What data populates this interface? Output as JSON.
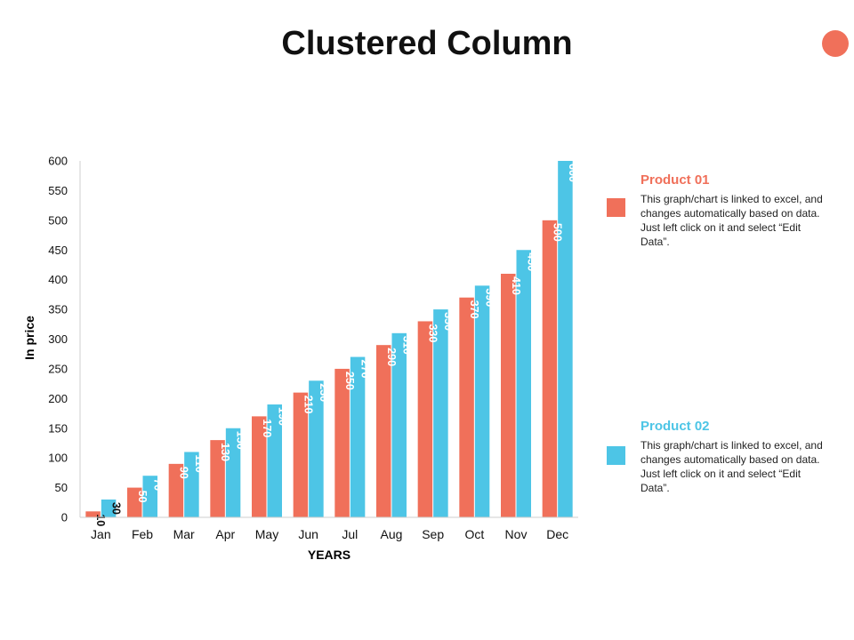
{
  "title": "Clustered Column",
  "colors": {
    "product_01": "#F0705A",
    "product_02": "#4DC5E6",
    "accent_dot": "#F0705A",
    "axis": "#cfcfcf"
  },
  "chart_data": {
    "type": "bar",
    "title": "Clustered Column",
    "xlabel": "YEARS",
    "ylabel": "In price",
    "ylim": [
      0,
      600
    ],
    "yticks": [
      0,
      50,
      100,
      150,
      200,
      250,
      300,
      350,
      400,
      450,
      500,
      550,
      600
    ],
    "grid": false,
    "legend": "right",
    "categories": [
      "Jan",
      "Feb",
      "Mar",
      "Apr",
      "May",
      "Jun",
      "Jul",
      "Aug",
      "Sep",
      "Oct",
      "Nov",
      "Dec"
    ],
    "series": [
      {
        "name": "Product 01",
        "values": [
          10,
          50,
          90,
          130,
          170,
          210,
          250,
          290,
          330,
          370,
          410,
          500
        ]
      },
      {
        "name": "Product 02",
        "values": [
          30,
          70,
          110,
          150,
          190,
          230,
          270,
          310,
          350,
          390,
          450,
          600
        ]
      }
    ]
  },
  "legend": [
    {
      "title": "Product 01",
      "description": "This graph/chart is linked to excel, and changes automatically based on data. Just left click on it and select “Edit Data”."
    },
    {
      "title": "Product 02",
      "description": "This graph/chart is linked to excel, and changes automatically based on data. Just left click on it and select “Edit Data”."
    }
  ]
}
